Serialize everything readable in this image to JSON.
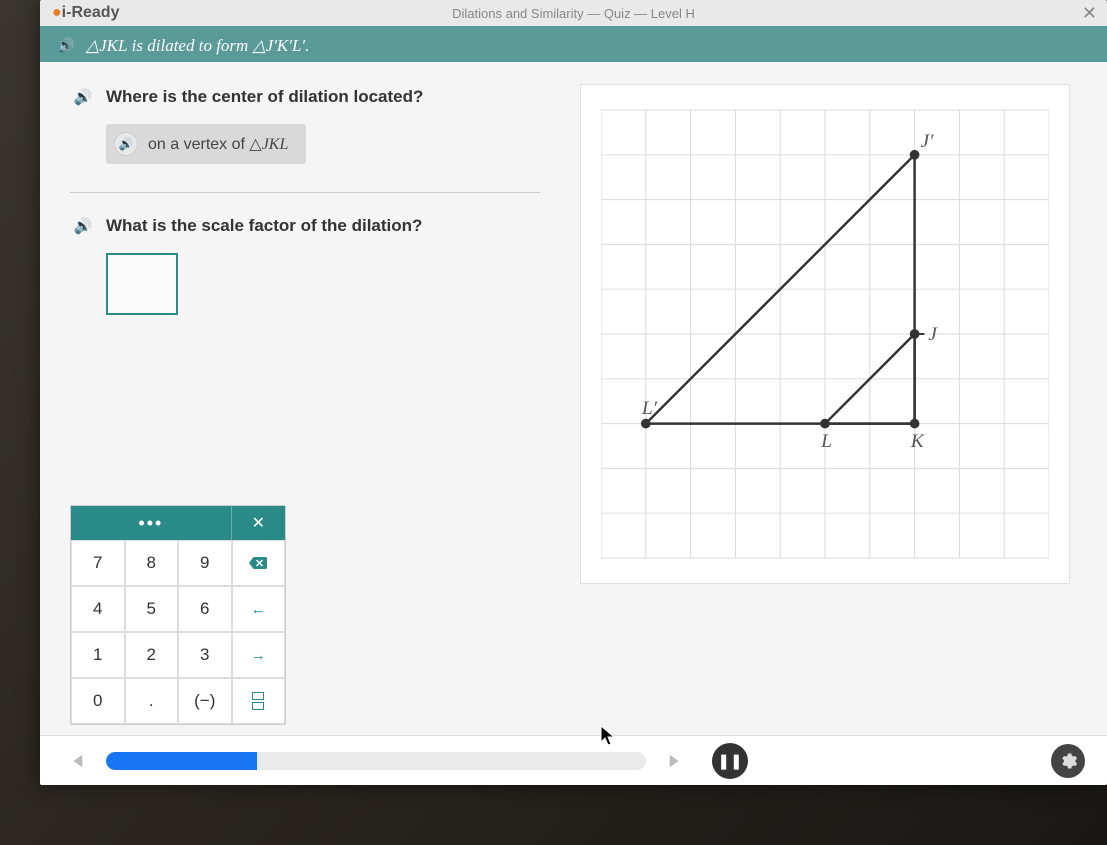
{
  "topbar": {
    "brand": "i-Ready",
    "title": "Dilations and Similarity — Quiz — Level H"
  },
  "context": {
    "statement_prefix": "△",
    "statement": "△JKL is dilated to form △J′K′L′."
  },
  "question1": {
    "text": "Where is the center of dilation located?",
    "answer": "on a vertex of △JKL"
  },
  "question2": {
    "text": "What is the scale factor of the dilation?",
    "input_value": ""
  },
  "keypad": {
    "rows": [
      [
        "7",
        "8",
        "9",
        "⌫"
      ],
      [
        "4",
        "5",
        "6",
        "←"
      ],
      [
        "1",
        "2",
        "3",
        "→"
      ],
      [
        "0",
        ".",
        "(−)",
        "frac"
      ]
    ]
  },
  "graph": {
    "cols": 10,
    "rows": 10,
    "cell": 46,
    "labels": {
      "Lp": "L′",
      "Jp": "J′",
      "L": "L",
      "K": "K",
      "J": "J"
    },
    "line_color": "#333333",
    "grid_color": "#d9d9d9",
    "point_color": "#333333",
    "points": {
      "Lp": [
        1,
        7
      ],
      "L": [
        5,
        7
      ],
      "K": [
        7,
        7
      ],
      "J": [
        7,
        5
      ],
      "Jp": [
        7,
        1
      ]
    },
    "triangle_small": [
      "K",
      "L",
      "J"
    ],
    "triangle_large": [
      "K",
      "Lp",
      "Jp"
    ]
  },
  "footer": {
    "progress_percent": 28
  },
  "colors": {
    "teal": "#5a9a98",
    "teal_dark": "#2a8a88",
    "blue": "#1976f2"
  }
}
